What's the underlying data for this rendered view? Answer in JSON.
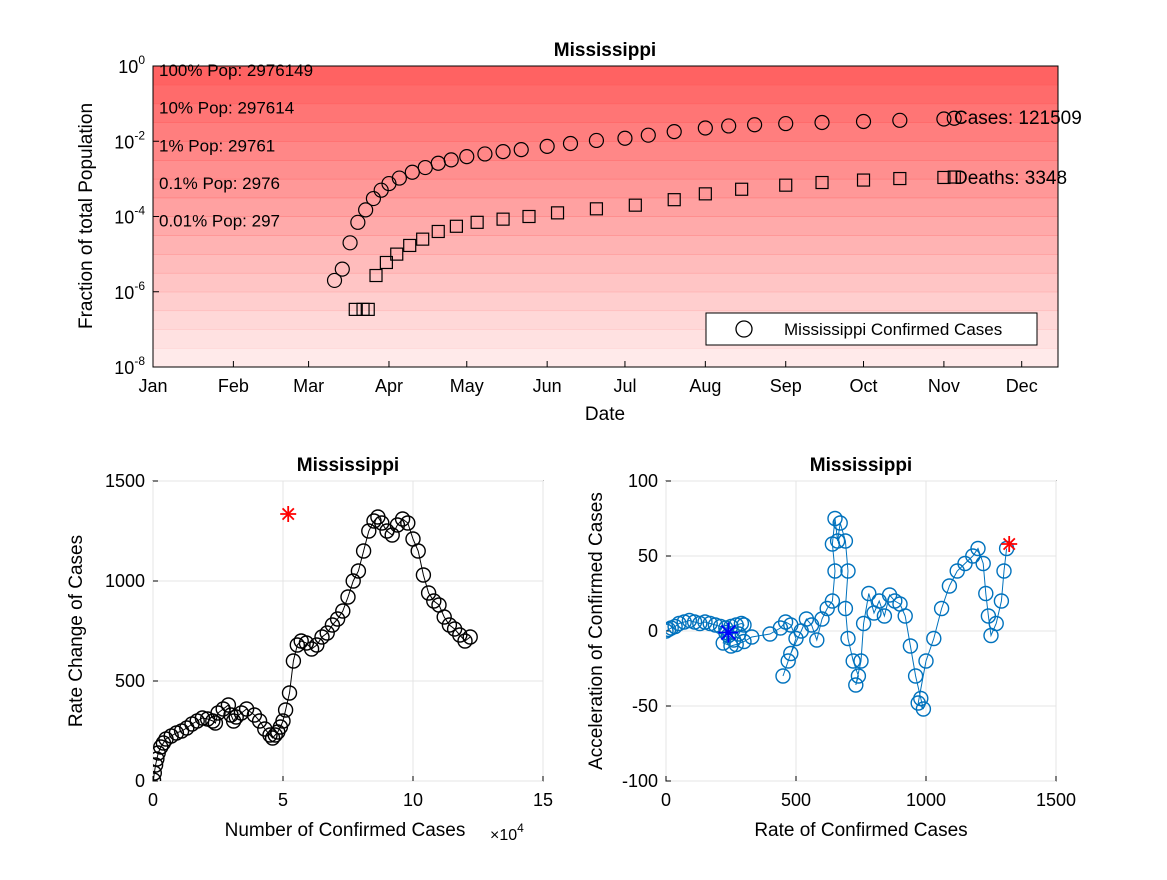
{
  "colors": {
    "band": "#ff5a5a",
    "marker_black": "#000000",
    "series_blue": "#0072bd",
    "highlight_red": "#ff0000",
    "star_blue": "#0000ff",
    "grid": "#e4e4e4"
  },
  "chart_data": [
    {
      "type": "scatter",
      "title": "Mississippi",
      "xlabel": "Date",
      "ylabel": "Fraction of total Population",
      "yscale": "log",
      "ylim": [
        1e-08,
        1
      ],
      "xlim": [
        "2020-01-01",
        "2020-12-15"
      ],
      "x_ticks": [
        "Jan",
        "Feb",
        "Mar",
        "Apr",
        "May",
        "Jun",
        "Jul",
        "Aug",
        "Sep",
        "Oct",
        "Nov",
        "Dec"
      ],
      "y_ticks": [
        {
          "base": "10",
          "exp": "0"
        },
        {
          "base": "10",
          "exp": "-2"
        },
        {
          "base": "10",
          "exp": "-4"
        },
        {
          "base": "10",
          "exp": "-6"
        },
        {
          "base": "10",
          "exp": "-8"
        }
      ],
      "population_bands": [
        {
          "label": "100% Pop: 2976149",
          "fraction": 1
        },
        {
          "label": "10% Pop: 297614",
          "fraction": 0.1
        },
        {
          "label": "1% Pop: 29761",
          "fraction": 0.01
        },
        {
          "label": "0.1% Pop: 2976",
          "fraction": 0.001
        },
        {
          "label": "0.01% Pop: 297",
          "fraction": 0.0001
        }
      ],
      "legend": {
        "label": "Mississippi Confirmed Cases",
        "position": "bottom-right"
      },
      "cases_label": "Cases: 121509",
      "deaths_label": "Deaths: 3348",
      "series": [
        {
          "marker": "circle",
          "points": [
            [
              "2020-03-11",
              2e-06
            ],
            [
              "2020-03-14",
              4e-06
            ],
            [
              "2020-03-17",
              2e-05
            ],
            [
              "2020-03-20",
              7e-05
            ],
            [
              "2020-03-23",
              0.00015
            ],
            [
              "2020-03-26",
              0.0003
            ],
            [
              "2020-03-29",
              0.0005
            ],
            [
              "2020-04-01",
              0.00075
            ],
            [
              "2020-04-05",
              0.00105
            ],
            [
              "2020-04-10",
              0.0015
            ],
            [
              "2020-04-15",
              0.002
            ],
            [
              "2020-04-20",
              0.0026
            ],
            [
              "2020-04-25",
              0.0032
            ],
            [
              "2020-05-01",
              0.0039
            ],
            [
              "2020-05-08",
              0.0046
            ],
            [
              "2020-05-15",
              0.0053
            ],
            [
              "2020-05-22",
              0.006
            ],
            [
              "2020-06-01",
              0.0073
            ],
            [
              "2020-06-10",
              0.0087
            ],
            [
              "2020-06-20",
              0.0105
            ],
            [
              "2020-07-01",
              0.012
            ],
            [
              "2020-07-10",
              0.0145
            ],
            [
              "2020-07-20",
              0.018
            ],
            [
              "2020-08-01",
              0.0225
            ],
            [
              "2020-08-10",
              0.0255
            ],
            [
              "2020-08-20",
              0.0275
            ],
            [
              "2020-09-01",
              0.0295
            ],
            [
              "2020-09-15",
              0.0315
            ],
            [
              "2020-10-01",
              0.0335
            ],
            [
              "2020-10-15",
              0.036
            ],
            [
              "2020-11-01",
              0.039
            ],
            [
              "2020-11-05",
              0.0408
            ]
          ]
        },
        {
          "marker": "square",
          "points": [
            [
              "2020-03-19",
              3.4e-07
            ],
            [
              "2020-03-22",
              3.4e-07
            ],
            [
              "2020-03-24",
              3.4e-07
            ],
            [
              "2020-03-27",
              2.7e-06
            ],
            [
              "2020-03-31",
              6e-06
            ],
            [
              "2020-04-04",
              1e-05
            ],
            [
              "2020-04-09",
              1.7e-05
            ],
            [
              "2020-04-14",
              2.5e-05
            ],
            [
              "2020-04-20",
              4e-05
            ],
            [
              "2020-04-27",
              5.5e-05
            ],
            [
              "2020-05-05",
              7e-05
            ],
            [
              "2020-05-15",
              8.5e-05
            ],
            [
              "2020-05-25",
              0.0001
            ],
            [
              "2020-06-05",
              0.000125
            ],
            [
              "2020-06-20",
              0.00016
            ],
            [
              "2020-07-05",
              0.0002
            ],
            [
              "2020-07-20",
              0.00028
            ],
            [
              "2020-08-01",
              0.0004
            ],
            [
              "2020-08-15",
              0.00053
            ],
            [
              "2020-09-01",
              0.00068
            ],
            [
              "2020-09-15",
              0.0008
            ],
            [
              "2020-10-01",
              0.00093
            ],
            [
              "2020-10-15",
              0.00102
            ],
            [
              "2020-11-01",
              0.00109
            ],
            [
              "2020-11-05",
              0.00112
            ]
          ]
        }
      ]
    },
    {
      "type": "line",
      "title": "Mississippi",
      "xlabel": "Number of Confirmed Cases",
      "x_multiplier": {
        "base": "×10",
        "exp": "4"
      },
      "ylabel": "Rate Change of Cases",
      "xlim": [
        0,
        15
      ],
      "ylim": [
        0,
        1500
      ],
      "x_ticks": [
        "0",
        "5",
        "10",
        "15"
      ],
      "y_ticks": [
        "0",
        "500",
        "1000",
        "1500"
      ],
      "marker": "circle",
      "points": [
        [
          0.02,
          5
        ],
        [
          0.05,
          40
        ],
        [
          0.1,
          80
        ],
        [
          0.15,
          110
        ],
        [
          0.2,
          140
        ],
        [
          0.3,
          170
        ],
        [
          0.4,
          190
        ],
        [
          0.5,
          210
        ],
        [
          0.7,
          225
        ],
        [
          0.9,
          240
        ],
        [
          1.1,
          250
        ],
        [
          1.3,
          265
        ],
        [
          1.5,
          285
        ],
        [
          1.7,
          300
        ],
        [
          1.9,
          315
        ],
        [
          2.1,
          310
        ],
        [
          2.3,
          300
        ],
        [
          2.4,
          290
        ],
        [
          2.5,
          340
        ],
        [
          2.7,
          360
        ],
        [
          2.9,
          380
        ],
        [
          3.0,
          330
        ],
        [
          3.1,
          300
        ],
        [
          3.2,
          320
        ],
        [
          3.4,
          340
        ],
        [
          3.6,
          360
        ],
        [
          3.9,
          330
        ],
        [
          4.1,
          300
        ],
        [
          4.3,
          260
        ],
        [
          4.5,
          230
        ],
        [
          4.6,
          215
        ],
        [
          4.7,
          230
        ],
        [
          4.8,
          245
        ],
        [
          4.9,
          270
        ],
        [
          5.0,
          300
        ],
        [
          5.1,
          355
        ],
        [
          5.25,
          440
        ],
        [
          5.4,
          600
        ],
        [
          5.55,
          680
        ],
        [
          5.7,
          700
        ],
        [
          5.9,
          690
        ],
        [
          6.1,
          660
        ],
        [
          6.3,
          680
        ],
        [
          6.5,
          720
        ],
        [
          6.7,
          740
        ],
        [
          6.9,
          780
        ],
        [
          7.1,
          810
        ],
        [
          7.3,
          850
        ],
        [
          7.5,
          920
        ],
        [
          7.7,
          1000
        ],
        [
          7.9,
          1050
        ],
        [
          8.1,
          1150
        ],
        [
          8.3,
          1250
        ],
        [
          8.5,
          1300
        ],
        [
          8.65,
          1320
        ],
        [
          8.8,
          1290
        ],
        [
          9.0,
          1250
        ],
        [
          9.2,
          1230
        ],
        [
          9.4,
          1280
        ],
        [
          9.6,
          1310
        ],
        [
          9.8,
          1290
        ],
        [
          10.0,
          1210
        ],
        [
          10.2,
          1150
        ],
        [
          10.4,
          1030
        ],
        [
          10.6,
          940
        ],
        [
          10.8,
          900
        ],
        [
          11.0,
          880
        ],
        [
          11.2,
          820
        ],
        [
          11.4,
          780
        ],
        [
          11.6,
          760
        ],
        [
          11.8,
          730
        ],
        [
          12.0,
          700
        ],
        [
          12.2,
          720
        ]
      ],
      "highlight": [
        5.2,
        1335
      ],
      "points_note": ""
    },
    {
      "type": "line",
      "title": "Mississippi",
      "xlabel": "Rate of Confirmed Cases",
      "ylabel": "Acceleration of Confirmed Cases",
      "xlim": [
        0,
        1500
      ],
      "ylim": [
        -100,
        100
      ],
      "x_ticks": [
        "0",
        "500",
        "1000",
        "1500"
      ],
      "y_ticks": [
        "100",
        "50",
        "0",
        "-50",
        "-100"
      ],
      "marker": "circle",
      "points": [
        [
          0,
          0
        ],
        [
          10,
          1
        ],
        [
          20,
          2
        ],
        [
          35,
          3
        ],
        [
          50,
          5
        ],
        [
          70,
          6
        ],
        [
          90,
          7
        ],
        [
          110,
          6
        ],
        [
          130,
          5
        ],
        [
          150,
          6
        ],
        [
          170,
          5
        ],
        [
          190,
          4
        ],
        [
          210,
          3
        ],
        [
          230,
          2
        ],
        [
          250,
          3
        ],
        [
          270,
          4
        ],
        [
          290,
          5
        ],
        [
          300,
          4
        ],
        [
          280,
          -2
        ],
        [
          260,
          -6
        ],
        [
          240,
          -3
        ],
        [
          230,
          -1
        ],
        [
          220,
          -8
        ],
        [
          250,
          -10
        ],
        [
          270,
          -9
        ],
        [
          300,
          -7
        ],
        [
          330,
          -4
        ],
        [
          400,
          -2
        ],
        [
          440,
          2
        ],
        [
          460,
          6
        ],
        [
          480,
          4
        ],
        [
          500,
          -5
        ],
        [
          470,
          -20
        ],
        [
          450,
          -30
        ],
        [
          480,
          -15
        ],
        [
          520,
          0
        ],
        [
          540,
          8
        ],
        [
          560,
          4
        ],
        [
          580,
          -6
        ],
        [
          600,
          8
        ],
        [
          620,
          15
        ],
        [
          640,
          20
        ],
        [
          650,
          40
        ],
        [
          640,
          58
        ],
        [
          650,
          75
        ],
        [
          660,
          60
        ],
        [
          670,
          72
        ],
        [
          690,
          60
        ],
        [
          700,
          40
        ],
        [
          690,
          15
        ],
        [
          700,
          -5
        ],
        [
          720,
          -20
        ],
        [
          740,
          -30
        ],
        [
          730,
          -36
        ],
        [
          750,
          -20
        ],
        [
          760,
          5
        ],
        [
          780,
          25
        ],
        [
          800,
          12
        ],
        [
          820,
          20
        ],
        [
          840,
          10
        ],
        [
          860,
          24
        ],
        [
          880,
          20
        ],
        [
          900,
          18
        ],
        [
          920,
          10
        ],
        [
          940,
          -10
        ],
        [
          960,
          -30
        ],
        [
          980,
          -45
        ],
        [
          990,
          -52
        ],
        [
          970,
          -48
        ],
        [
          1000,
          -20
        ],
        [
          1030,
          -5
        ],
        [
          1060,
          15
        ],
        [
          1090,
          30
        ],
        [
          1120,
          40
        ],
        [
          1150,
          45
        ],
        [
          1180,
          50
        ],
        [
          1200,
          55
        ],
        [
          1220,
          45
        ],
        [
          1230,
          25
        ],
        [
          1240,
          10
        ],
        [
          1250,
          -3
        ],
        [
          1270,
          5
        ],
        [
          1290,
          20
        ],
        [
          1300,
          40
        ],
        [
          1310,
          55
        ]
      ],
      "highlight": [
        1320,
        58
      ],
      "marker_star": [
        240,
        -1
      ]
    }
  ]
}
